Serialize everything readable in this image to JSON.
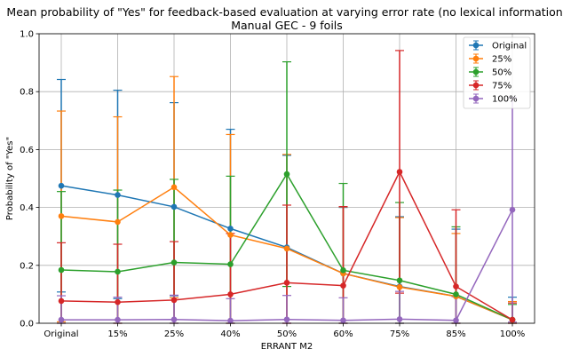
{
  "chart_data": {
    "type": "line",
    "title": "Mean probability of \"Yes\" for feedback-based evaluation at varying error rate (no lexical information)",
    "subtitle": "Manual GEC - 9 foils",
    "xlabel": "ERRANT M2",
    "ylabel": "Probability of \"Yes\"",
    "categories": [
      "Original",
      "15%",
      "25%",
      "40%",
      "50%",
      "60%",
      "75%",
      "85%",
      "100%"
    ],
    "ylim": [
      0,
      1.0
    ],
    "yticks": [
      "0.0",
      "0.2",
      "0.4",
      "0.6",
      "0.8",
      "1.0"
    ],
    "grid": true,
    "legend_position": "top-right",
    "series": [
      {
        "name": "Original",
        "color": "#1f77b4",
        "values": [
          0.475,
          0.443,
          0.402,
          0.327,
          0.262,
          0.172,
          0.127,
          0.093,
          0.012
        ],
        "err_upper": [
          0.842,
          0.805,
          0.762,
          0.67,
          0.58,
          0.4,
          0.368,
          0.325,
          0.09
        ],
        "err_lower": [
          0.108,
          0.085,
          0.095,
          0.0,
          0.0,
          0.0,
          0.0,
          0.0,
          0.0
        ]
      },
      {
        "name": "25%",
        "color": "#ff7f0e",
        "values": [
          0.37,
          0.35,
          0.47,
          0.305,
          0.258,
          0.172,
          0.125,
          0.093,
          0.012
        ],
        "err_upper": [
          0.733,
          0.713,
          0.852,
          0.652,
          0.583,
          0.402,
          0.365,
          0.31,
          0.075
        ],
        "err_lower": [
          0.005,
          0.0,
          0.088,
          0.0,
          0.0,
          0.0,
          0.0,
          0.0,
          0.0
        ]
      },
      {
        "name": "50%",
        "color": "#2ca02c",
        "values": [
          0.184,
          0.178,
          0.21,
          0.204,
          0.515,
          0.183,
          0.148,
          0.1,
          0.012
        ],
        "err_upper": [
          0.455,
          0.46,
          0.497,
          0.508,
          0.903,
          0.483,
          0.417,
          0.333,
          0.065
        ],
        "err_lower": [
          0.0,
          0.0,
          0.0,
          0.0,
          0.127,
          0.0,
          0.0,
          0.0,
          0.0
        ]
      },
      {
        "name": "75%",
        "color": "#d62728",
        "values": [
          0.077,
          0.073,
          0.08,
          0.1,
          0.14,
          0.13,
          0.523,
          0.127,
          0.012
        ],
        "err_upper": [
          0.278,
          0.273,
          0.282,
          0.31,
          0.408,
          0.403,
          0.942,
          0.392,
          0.07
        ],
        "err_lower": [
          0.0,
          0.0,
          0.0,
          0.0,
          0.0,
          0.0,
          0.104,
          0.0,
          0.0
        ]
      },
      {
        "name": "100%",
        "color": "#9467bd",
        "values": [
          0.012,
          0.012,
          0.013,
          0.009,
          0.013,
          0.01,
          0.014,
          0.01,
          0.392
        ],
        "err_upper": [
          0.095,
          0.09,
          0.097,
          0.085,
          0.096,
          0.088,
          0.11,
          0.092,
          0.78
        ],
        "err_lower": [
          0.0,
          0.0,
          0.0,
          0.0,
          0.0,
          0.0,
          0.0,
          0.0,
          0.004
        ]
      }
    ]
  }
}
